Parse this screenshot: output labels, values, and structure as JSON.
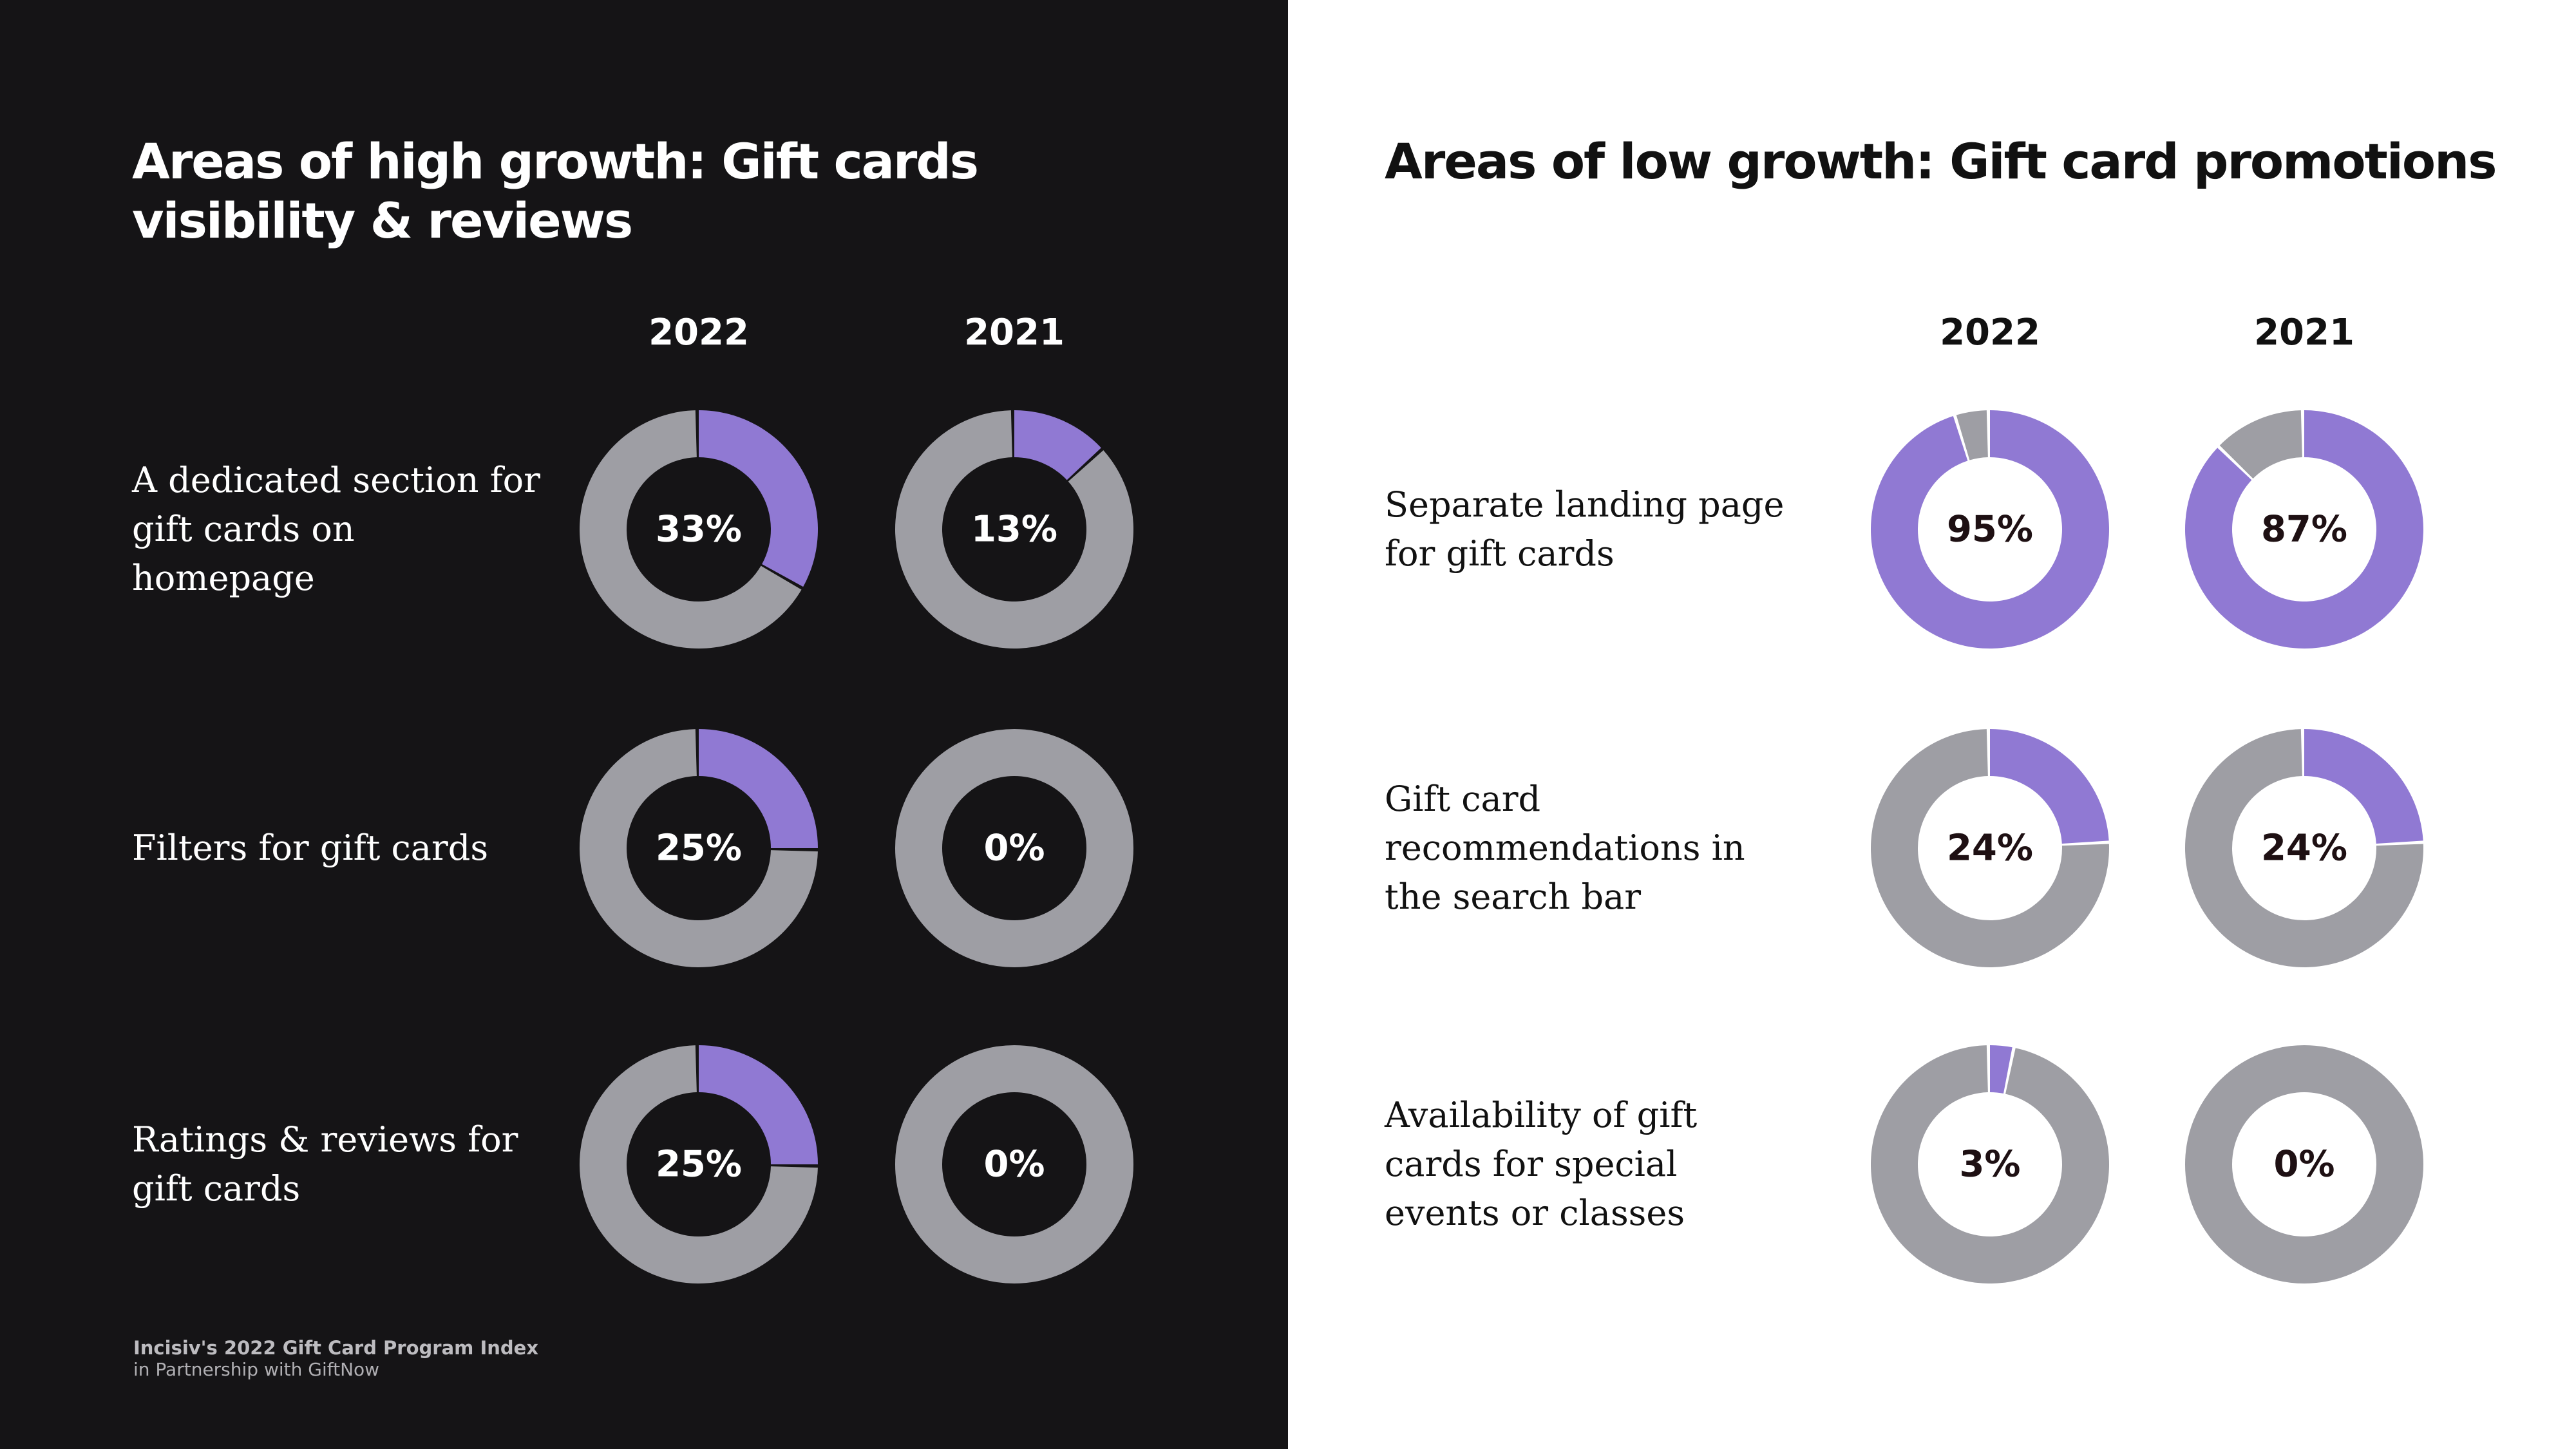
{
  "chart_data": [
    {
      "type": "donut",
      "title": "Areas of high growth: Gift cards visibility & reviews",
      "theme": "dark",
      "years": [
        "2022",
        "2021"
      ],
      "rows": [
        {
          "label": "A dedicated section for gift cards on homepage",
          "values": [
            33,
            13
          ],
          "value_labels": [
            "33%",
            "13%"
          ]
        },
        {
          "label": "Filters for gift cards",
          "values": [
            25,
            0
          ],
          "value_labels": [
            "25%",
            "0%"
          ]
        },
        {
          "label": "Ratings & reviews for gift cards",
          "values": [
            25,
            0
          ],
          "value_labels": [
            "25%",
            "0%"
          ]
        }
      ],
      "colors": {
        "highlight": "#9079d3",
        "rest": "#9e9ea4",
        "background": "#151416"
      }
    },
    {
      "type": "donut",
      "title": "Areas of low growth: Gift card promotions",
      "theme": "light",
      "years": [
        "2022",
        "2021"
      ],
      "rows": [
        {
          "label": "Separate landing page for gift cards",
          "values": [
            95,
            87
          ],
          "value_labels": [
            "95%",
            "87%"
          ]
        },
        {
          "label": "Gift card recommendations in the search bar",
          "values": [
            24,
            24
          ],
          "value_labels": [
            "24%",
            "24%"
          ]
        },
        {
          "label": "Availability of gift cards for special events or classes",
          "values": [
            3,
            0
          ],
          "value_labels": [
            "3%",
            "0%"
          ]
        }
      ],
      "colors": {
        "highlight": "#9079d3",
        "rest": "#9e9ea4",
        "background": "#ffffff"
      }
    }
  ],
  "footer": {
    "line1": "Incisiv's 2022 Gift Card Program Index",
    "line2": "in Partnership with GiftNow"
  }
}
